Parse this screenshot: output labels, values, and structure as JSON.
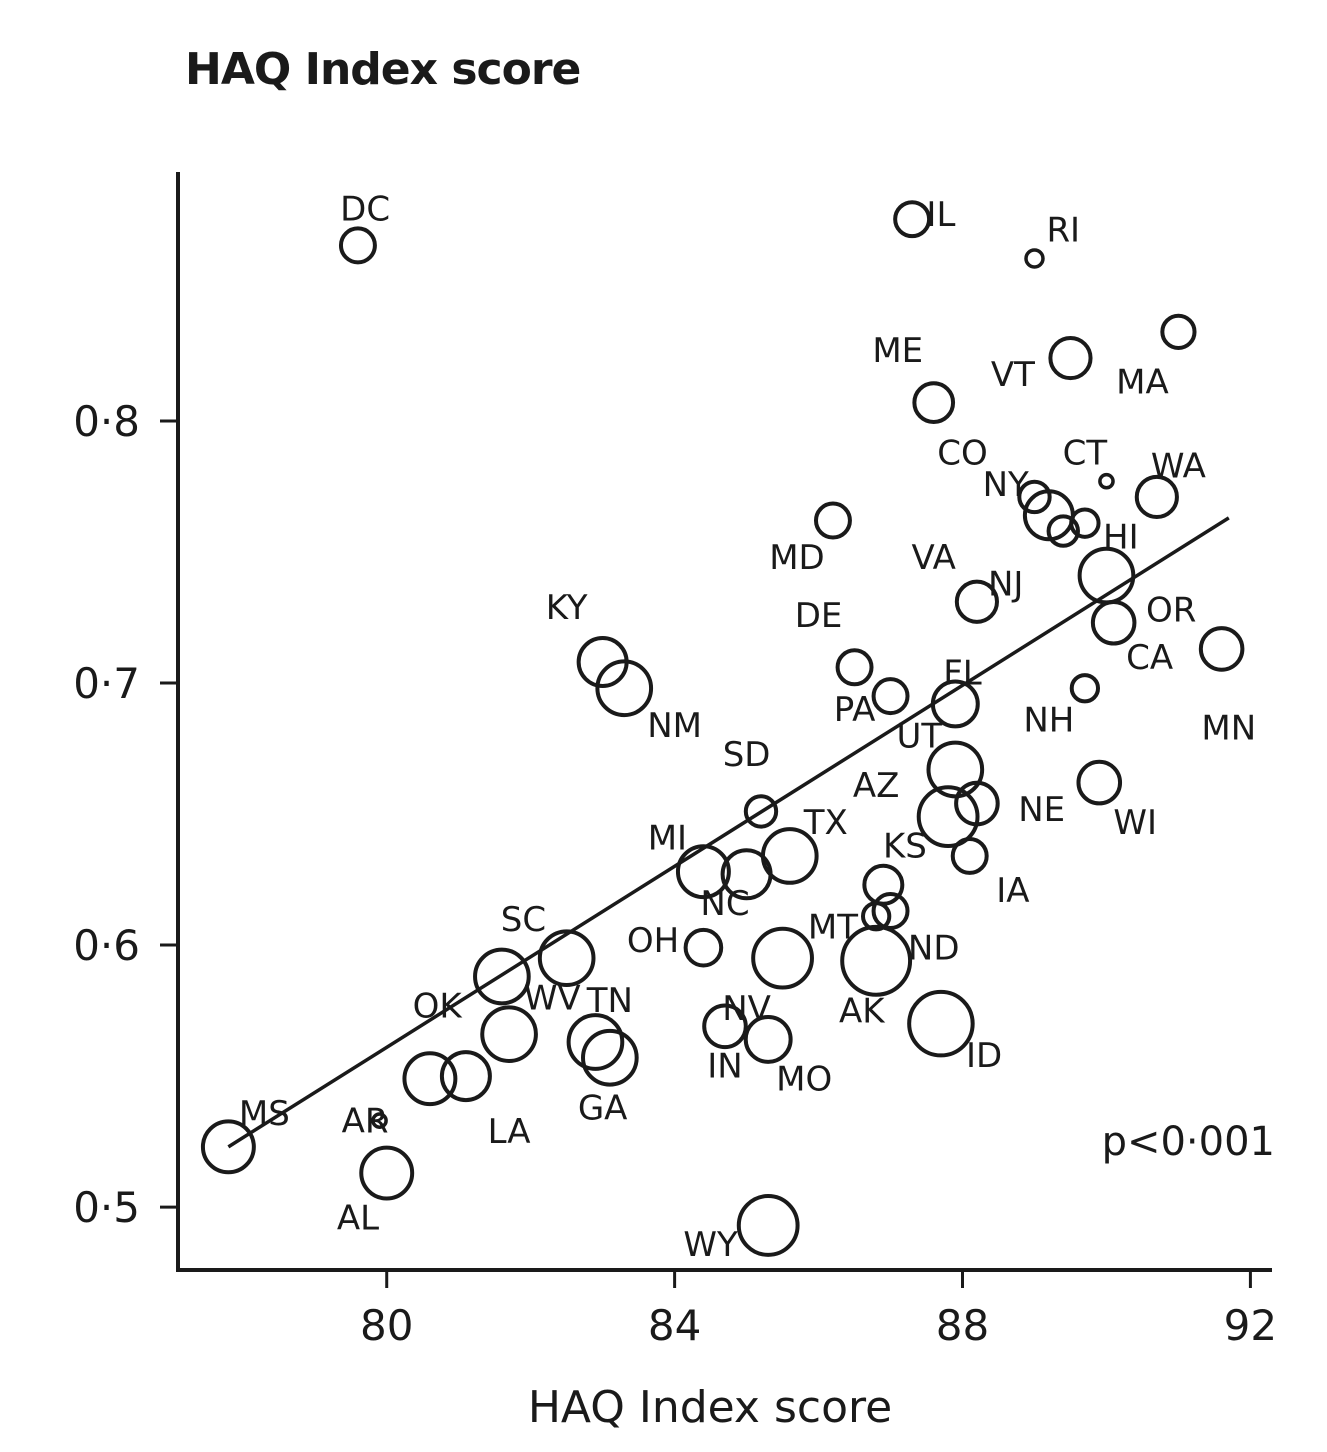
{
  "chart_data": {
    "type": "scatter",
    "title": "HAQ Index score",
    "xlabel": "HAQ Index score",
    "ylabel": "",
    "xlim": [
      77.1,
      92.3
    ],
    "ylim": [
      0.476,
      0.895
    ],
    "x_ticks": [
      80,
      84,
      88,
      92
    ],
    "x_tick_labels": [
      "80",
      "84",
      "88",
      "92"
    ],
    "y_ticks": [
      0.5,
      0.6,
      0.7,
      0.8
    ],
    "y_tick_labels": [
      "0·5",
      "0·6",
      "0·7",
      "0·8"
    ],
    "annotation": "p<0·001",
    "trend_line": {
      "x": [
        77.8,
        91.7
      ],
      "y": [
        0.523,
        0.763
      ]
    },
    "colors": {
      "ink": "#1a1a1a",
      "background": "#ffffff"
    },
    "grid": false,
    "points": [
      {
        "label": "DC",
        "x": 79.6,
        "y": 0.867,
        "size": 2,
        "label_dx": 0.1,
        "label_dy": 0.014
      },
      {
        "label": "IL",
        "x": 87.3,
        "y": 0.877,
        "size": 2,
        "label_dx": 0.4,
        "label_dy": 0.002
      },
      {
        "label": "RI",
        "x": 89.0,
        "y": 0.862,
        "size": 0.5,
        "label_dx": 0.4,
        "label_dy": 0.011
      },
      {
        "label": "MA",
        "x": 91.0,
        "y": 0.834,
        "size": 1.8,
        "label_dx": -0.5,
        "label_dy": -0.019
      },
      {
        "label": "VT",
        "x": 89.5,
        "y": 0.824,
        "size": 2.8,
        "label_dx": -0.8,
        "label_dy": -0.006
      },
      {
        "label": "ME",
        "x": 87.6,
        "y": 0.807,
        "size": 2.6,
        "label_dx": -0.5,
        "label_dy": 0.02
      },
      {
        "label": "CO",
        "x": 89.2,
        "y": 0.764,
        "size": 4,
        "label_dx": -1.2,
        "label_dy": 0.024
      },
      {
        "label": "CT",
        "x": 90.0,
        "y": 0.777,
        "size": 0.3,
        "label_dx": -0.3,
        "label_dy": 0.011
      },
      {
        "label": "NY",
        "x": 89.0,
        "y": 0.771,
        "size": 1.6,
        "label_dx": -0.4,
        "label_dy": 0.005
      },
      {
        "label": "WA",
        "x": 90.7,
        "y": 0.771,
        "size": 2.8,
        "label_dx": 0.3,
        "label_dy": 0.012
      },
      {
        "label": "MD",
        "x": 86.2,
        "y": 0.762,
        "size": 2,
        "label_dx": -0.5,
        "label_dy": -0.014
      },
      {
        "label": "NJ",
        "x": 89.4,
        "y": 0.758,
        "size": 1.5,
        "label_dx": -0.8,
        "label_dy": -0.02
      },
      {
        "label": "HI",
        "x": 89.7,
        "y": 0.761,
        "size": 1.3,
        "label_dx": 0.5,
        "label_dy": -0.005
      },
      {
        "label": "VA",
        "x": 88.2,
        "y": 0.731,
        "size": 2.8,
        "label_dx": -0.6,
        "label_dy": 0.017
      },
      {
        "label": "OR",
        "x": 90.0,
        "y": 0.741,
        "size": 5,
        "label_dx": 0.9,
        "label_dy": -0.013
      },
      {
        "label": "CA",
        "x": 90.1,
        "y": 0.723,
        "size": 3,
        "label_dx": 0.5,
        "label_dy": -0.013
      },
      {
        "label": "MN",
        "x": 91.6,
        "y": 0.713,
        "size": 3,
        "label_dx": 0.1,
        "label_dy": -0.03
      },
      {
        "label": "KY",
        "x": 83.0,
        "y": 0.708,
        "size": 4,
        "label_dx": -0.5,
        "label_dy": 0.021
      },
      {
        "label": "NM",
        "x": 83.3,
        "y": 0.698,
        "size": 5,
        "label_dx": 0.7,
        "label_dy": -0.014
      },
      {
        "label": "DE",
        "x": 86.5,
        "y": 0.706,
        "size": 2,
        "label_dx": -0.5,
        "label_dy": 0.02
      },
      {
        "label": "FL",
        "x": 87.9,
        "y": 0.692,
        "size": 3.5,
        "label_dx": 0.1,
        "label_dy": 0.012
      },
      {
        "label": "PA",
        "x": 87.0,
        "y": 0.695,
        "size": 2,
        "label_dx": -0.5,
        "label_dy": -0.005
      },
      {
        "label": "NH",
        "x": 89.7,
        "y": 0.698,
        "size": 1.2,
        "label_dx": -0.5,
        "label_dy": -0.012
      },
      {
        "label": "UT",
        "x": 87.9,
        "y": 0.667,
        "size": 5,
        "label_dx": -0.5,
        "label_dy": 0.013
      },
      {
        "label": "SD",
        "x": 85.2,
        "y": 0.651,
        "size": 1.6,
        "label_dx": -0.2,
        "label_dy": 0.022
      },
      {
        "label": "AZ",
        "x": 87.8,
        "y": 0.649,
        "size": 6,
        "label_dx": -1.0,
        "label_dy": 0.012
      },
      {
        "label": "NE",
        "x": 88.2,
        "y": 0.654,
        "size": 3,
        "label_dx": 0.9,
        "label_dy": -0.002
      },
      {
        "label": "WI",
        "x": 89.9,
        "y": 0.662,
        "size": 3,
        "label_dx": 0.5,
        "label_dy": -0.015
      },
      {
        "label": "MI",
        "x": 84.4,
        "y": 0.628,
        "size": 4.5,
        "label_dx": -0.5,
        "label_dy": 0.013
      },
      {
        "label": "TX",
        "x": 85.6,
        "y": 0.634,
        "size": 5,
        "label_dx": 0.5,
        "label_dy": 0.013
      },
      {
        "label": "NC",
        "x": 85.0,
        "y": 0.627,
        "size": 4,
        "label_dx": -0.3,
        "label_dy": -0.011
      },
      {
        "label": "KS",
        "x": 86.9,
        "y": 0.623,
        "size": 2.5,
        "label_dx": 0.3,
        "label_dy": 0.015
      },
      {
        "label": "IA",
        "x": 88.1,
        "y": 0.634,
        "size": 2,
        "label_dx": 0.6,
        "label_dy": -0.013
      },
      {
        "label": "MT",
        "x": 86.8,
        "y": 0.611,
        "size": 1.2,
        "label_dx": -0.6,
        "label_dy": -0.004
      },
      {
        "label": "ND",
        "x": 87.0,
        "y": 0.613,
        "size": 2,
        "label_dx": 0.6,
        "label_dy": -0.014
      },
      {
        "label": "SC",
        "x": 82.5,
        "y": 0.595,
        "size": 5,
        "label_dx": -0.6,
        "label_dy": 0.015
      },
      {
        "label": "OH",
        "x": 81.6,
        "y": 0.588,
        "size": 5,
        "label_dx": 2.1,
        "label_dy": 0.014
      },
      {
        "label": "AK",
        "x": 84.4,
        "y": 0.599,
        "size": 2.2,
        "label_dx": 2.2,
        "label_dy": -0.024
      },
      {
        "label": "NV",
        "x": 85.5,
        "y": 0.595,
        "size": 6,
        "label_dx": -0.5,
        "label_dy": -0.019
      },
      {
        "label": "TN",
        "x": 86.8,
        "y": 0.594,
        "size": 8,
        "label_dx": -3.7,
        "label_dy": -0.015
      },
      {
        "label": "WV",
        "x": 81.7,
        "y": 0.566,
        "size": 5,
        "label_dx": 0.6,
        "label_dy": 0.014
      },
      {
        "label": "OK",
        "x": 80.6,
        "y": 0.549,
        "size": 4.5,
        "label_dx": 0.1,
        "label_dy": 0.028
      },
      {
        "label": "GA",
        "x": 82.9,
        "y": 0.563,
        "size": 5,
        "label_dx": 0.1,
        "label_dy": -0.025
      },
      {
        "label": "",
        "x": 83.1,
        "y": 0.557,
        "size": 5,
        "label_dx": 0,
        "label_dy": 0
      },
      {
        "label": "IN",
        "x": 84.7,
        "y": 0.569,
        "size": 3,
        "label_dx": 0.0,
        "label_dy": -0.015
      },
      {
        "label": "MO",
        "x": 85.3,
        "y": 0.564,
        "size": 3.5,
        "label_dx": 0.5,
        "label_dy": -0.015
      },
      {
        "label": "ID",
        "x": 87.7,
        "y": 0.57,
        "size": 7,
        "label_dx": 0.6,
        "label_dy": -0.012
      },
      {
        "label": "LA",
        "x": 81.1,
        "y": 0.55,
        "size": 4,
        "label_dx": 0.6,
        "label_dy": -0.021
      },
      {
        "label": "MS",
        "x": 77.8,
        "y": 0.523,
        "size": 4.5,
        "label_dx": 0.5,
        "label_dy": 0.013
      },
      {
        "label": "AR",
        "x": 79.9,
        "y": 0.533,
        "size": 0.3,
        "label_dx": -0.2,
        "label_dy": -0.0
      },
      {
        "label": "AL",
        "x": 80.0,
        "y": 0.513,
        "size": 4.5,
        "label_dx": -0.4,
        "label_dy": -0.017
      },
      {
        "label": "WY",
        "x": 85.3,
        "y": 0.493,
        "size": 6,
        "label_dx": -0.8,
        "label_dy": -0.007
      }
    ]
  }
}
